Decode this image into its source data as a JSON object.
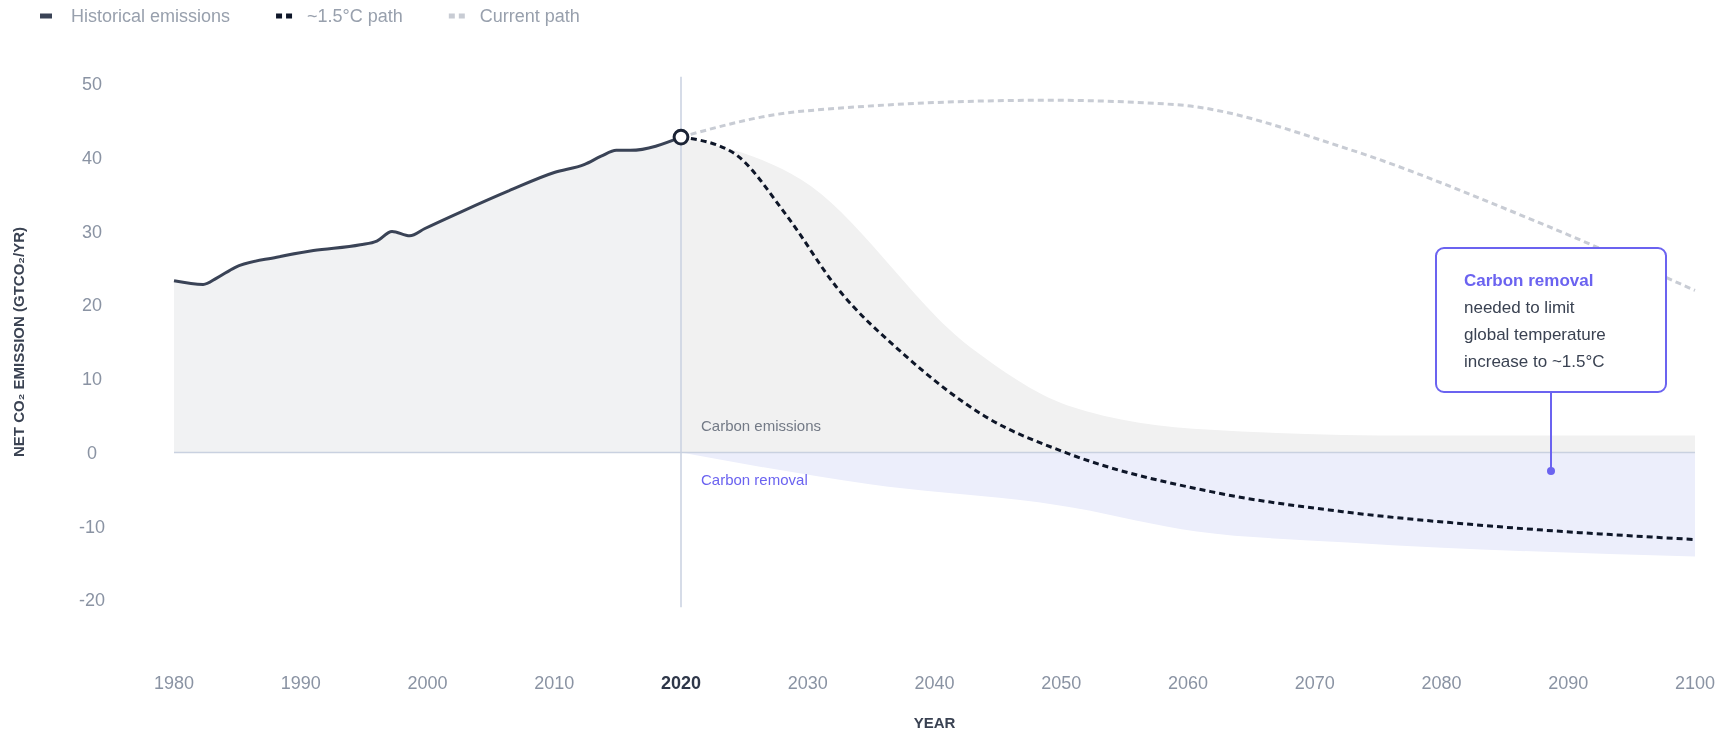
{
  "chart_data": {
    "type": "line",
    "xlabel": "YEAR",
    "ylabel": "NET CO₂ EMISSION (GTCO₂/YR)",
    "xlim": [
      1980,
      2100
    ],
    "xticks": [
      1980,
      1990,
      2000,
      2010,
      2020,
      2030,
      2040,
      2050,
      2060,
      2070,
      2080,
      2090,
      2100
    ],
    "ylim": [
      -21,
      51
    ],
    "yticks": [
      -20,
      -10,
      0,
      10,
      20,
      30,
      40,
      50
    ],
    "grid": false,
    "legend": "top left",
    "series": [
      {
        "name": "Carbon emissions",
        "type": "area",
        "color": "#f1f1f1",
        "x": [
          2020,
          2029.5,
          2042.9,
          2050.5,
          2061.8,
          2077.9,
          2100
        ],
        "values": [
          42.8,
          37.0,
          14.2,
          6.4,
          3.1,
          2.3,
          2.3
        ]
      },
      {
        "name": "Carbon removal",
        "type": "area",
        "color": "#eceefb",
        "x": [
          2020,
          2034.9,
          2050,
          2060.7,
          2072.6,
          2100
        ],
        "values": [
          0,
          -4.3,
          -7.2,
          -10.7,
          -12.2,
          -14.1
        ]
      },
      {
        "name": "Historical emissions",
        "type": "area",
        "line_style": "solid",
        "marker": "none",
        "color": "#3a4356",
        "x": [
          1980,
          1982.3,
          1983.4,
          1984.8,
          1988.1,
          1991,
          1994.7,
          1996,
          1997.2,
          1998.6,
          1999.8,
          2002.7,
          2006.4,
          2010,
          2012.4,
          2013.7,
          2014.9,
          2016,
          2020
        ],
        "values": [
          23.3,
          22.8,
          23.7,
          25.1,
          26.5,
          27.4,
          28.2,
          28.7,
          30.0,
          29.4,
          30.4,
          32.7,
          35.5,
          38.0,
          39.1,
          40.2,
          41.0,
          41.0,
          42.8
        ]
      },
      {
        "name": "~1.5°C path",
        "line_style": "dashed",
        "marker": "none",
        "color": "#0e1628",
        "x": [
          2020,
          2024,
          2028.4,
          2032.2,
          2037.6,
          2044,
          2050.5,
          2061.8,
          2072.6,
          2083.4,
          2100
        ],
        "values": [
          42.8,
          40.8,
          32,
          22.6,
          13.3,
          4.9,
          -0.1,
          -5.3,
          -8.1,
          -9.9,
          -11.8
        ]
      },
      {
        "name": "Current path",
        "line_style": "dashed",
        "marker": "none",
        "color": "#c8ccd4",
        "x": [
          2020,
          2029.5,
          2049,
          2059,
          2072.6,
          2086,
          2100
        ],
        "values": [
          42.8,
          46.3,
          47.8,
          47.2,
          41.2,
          32.4,
          22
        ]
      },
      {
        "type": "scatter",
        "marker": "circle",
        "color": "#1b2335",
        "x": [
          2020
        ],
        "values": [
          42.8
        ]
      }
    ],
    "ref_lines": [
      {
        "axis": "x",
        "value": 2020,
        "color": "#c9d1e0"
      },
      {
        "axis": "y",
        "value": 0,
        "color": "#c9d1e0"
      }
    ],
    "annotations": [
      "Carbon removal",
      "needed to limit global temperature increase to ~1.5°C"
    ]
  }
}
